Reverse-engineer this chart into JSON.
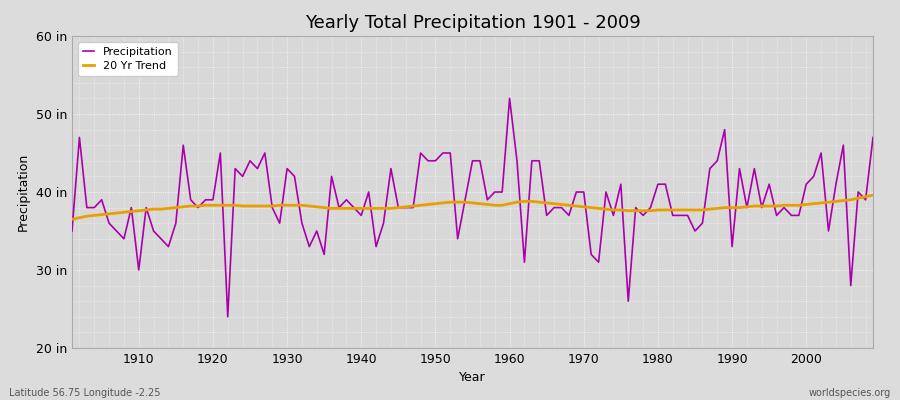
{
  "title": "Yearly Total Precipitation 1901 - 2009",
  "xlabel": "Year",
  "ylabel": "Precipitation",
  "lat_lon_label": "Latitude 56.75 Longitude -2.25",
  "watermark": "worldspecies.org",
  "precip_color": "#AA00AA",
  "trend_color": "#E8A000",
  "background_color": "#DCDCDC",
  "plot_bg_color": "#D8D8D8",
  "ylim": [
    20,
    60
  ],
  "xlim": [
    1901,
    2009
  ],
  "yticks": [
    20,
    30,
    40,
    50,
    60
  ],
  "ytick_labels": [
    "20 in",
    "30 in",
    "40 in",
    "50 in",
    "60 in"
  ],
  "xticks": [
    1910,
    1920,
    1930,
    1940,
    1950,
    1960,
    1970,
    1980,
    1990,
    2000
  ],
  "years": [
    1901,
    1902,
    1903,
    1904,
    1905,
    1906,
    1907,
    1908,
    1909,
    1910,
    1911,
    1912,
    1913,
    1914,
    1915,
    1916,
    1917,
    1918,
    1919,
    1920,
    1921,
    1922,
    1923,
    1924,
    1925,
    1926,
    1927,
    1928,
    1929,
    1930,
    1931,
    1932,
    1933,
    1934,
    1935,
    1936,
    1937,
    1938,
    1939,
    1940,
    1941,
    1942,
    1943,
    1944,
    1945,
    1946,
    1947,
    1948,
    1949,
    1950,
    1951,
    1952,
    1953,
    1954,
    1955,
    1956,
    1957,
    1958,
    1959,
    1960,
    1961,
    1962,
    1963,
    1964,
    1965,
    1966,
    1967,
    1968,
    1969,
    1970,
    1971,
    1972,
    1973,
    1974,
    1975,
    1976,
    1977,
    1978,
    1979,
    1980,
    1981,
    1982,
    1983,
    1984,
    1985,
    1986,
    1987,
    1988,
    1989,
    1990,
    1991,
    1992,
    1993,
    1994,
    1995,
    1996,
    1997,
    1998,
    1999,
    2000,
    2001,
    2002,
    2003,
    2004,
    2005,
    2006,
    2007,
    2008,
    2009
  ],
  "precipitation": [
    35,
    47,
    38,
    38,
    39,
    36,
    35,
    34,
    38,
    30,
    38,
    35,
    34,
    33,
    36,
    46,
    39,
    38,
    39,
    39,
    45,
    24,
    43,
    42,
    44,
    43,
    45,
    38,
    36,
    43,
    42,
    36,
    33,
    35,
    32,
    42,
    38,
    39,
    38,
    37,
    40,
    33,
    36,
    43,
    38,
    38,
    38,
    45,
    44,
    44,
    45,
    45,
    34,
    39,
    44,
    44,
    39,
    40,
    40,
    52,
    44,
    31,
    44,
    44,
    37,
    38,
    38,
    37,
    40,
    40,
    32,
    31,
    40,
    37,
    41,
    26,
    38,
    37,
    38,
    41,
    41,
    37,
    37,
    37,
    35,
    36,
    43,
    44,
    48,
    33,
    43,
    38,
    43,
    38,
    41,
    37,
    38,
    37,
    37,
    41,
    42,
    45,
    35,
    41,
    46,
    28,
    40,
    39,
    47
  ],
  "trend": [
    36.5,
    36.7,
    36.9,
    37.0,
    37.1,
    37.2,
    37.3,
    37.4,
    37.5,
    37.6,
    37.7,
    37.8,
    37.8,
    37.9,
    38.0,
    38.1,
    38.2,
    38.2,
    38.3,
    38.3,
    38.3,
    38.3,
    38.3,
    38.2,
    38.2,
    38.2,
    38.2,
    38.2,
    38.3,
    38.3,
    38.3,
    38.3,
    38.2,
    38.1,
    38.0,
    37.9,
    37.9,
    37.9,
    37.9,
    37.9,
    37.9,
    37.9,
    37.9,
    37.9,
    38.0,
    38.1,
    38.2,
    38.3,
    38.4,
    38.5,
    38.6,
    38.7,
    38.7,
    38.7,
    38.6,
    38.5,
    38.4,
    38.3,
    38.3,
    38.5,
    38.7,
    38.8,
    38.8,
    38.7,
    38.6,
    38.5,
    38.4,
    38.3,
    38.2,
    38.1,
    38.0,
    37.9,
    37.8,
    37.7,
    37.7,
    37.6,
    37.6,
    37.6,
    37.6,
    37.7,
    37.7,
    37.7,
    37.7,
    37.7,
    37.7,
    37.7,
    37.8,
    37.9,
    38.0,
    38.0,
    38.0,
    38.1,
    38.2,
    38.2,
    38.2,
    38.2,
    38.3,
    38.3,
    38.3,
    38.4,
    38.5,
    38.6,
    38.7,
    38.8,
    38.9,
    39.0,
    39.2,
    39.4,
    39.6
  ]
}
